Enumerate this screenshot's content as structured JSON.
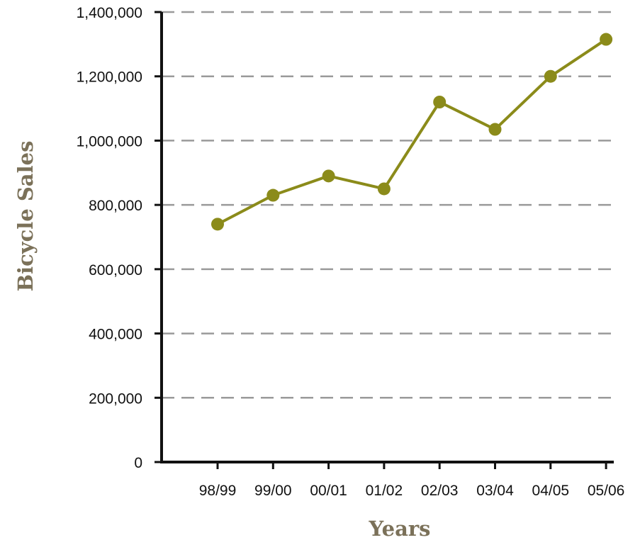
{
  "chart_data": {
    "type": "line",
    "title": "",
    "xlabel": "Years",
    "ylabel": "Bicycle Sales",
    "categories": [
      "98/99",
      "99/00",
      "00/01",
      "01/02",
      "02/03",
      "03/04",
      "04/05",
      "05/06"
    ],
    "series": [
      {
        "values": [
          740000,
          830000,
          890000,
          850000,
          1120000,
          1035000,
          1200000,
          1315000
        ]
      }
    ],
    "ylim": [
      0,
      1400000
    ],
    "yticks": [
      0,
      200000,
      400000,
      600000,
      800000,
      1000000,
      1200000,
      1400000
    ],
    "ytick_labels": [
      "0",
      "200,000",
      "400,000",
      "600,000",
      "800,000",
      "1,000,000",
      "1,200,000",
      "1,400,000"
    ],
    "grid": "horizontal dashed",
    "legend": "none",
    "colors": {
      "line": "#8b8b1a",
      "axis_title": "#7b7159",
      "grid": "#9a9a9a",
      "axis": "#111111"
    }
  }
}
